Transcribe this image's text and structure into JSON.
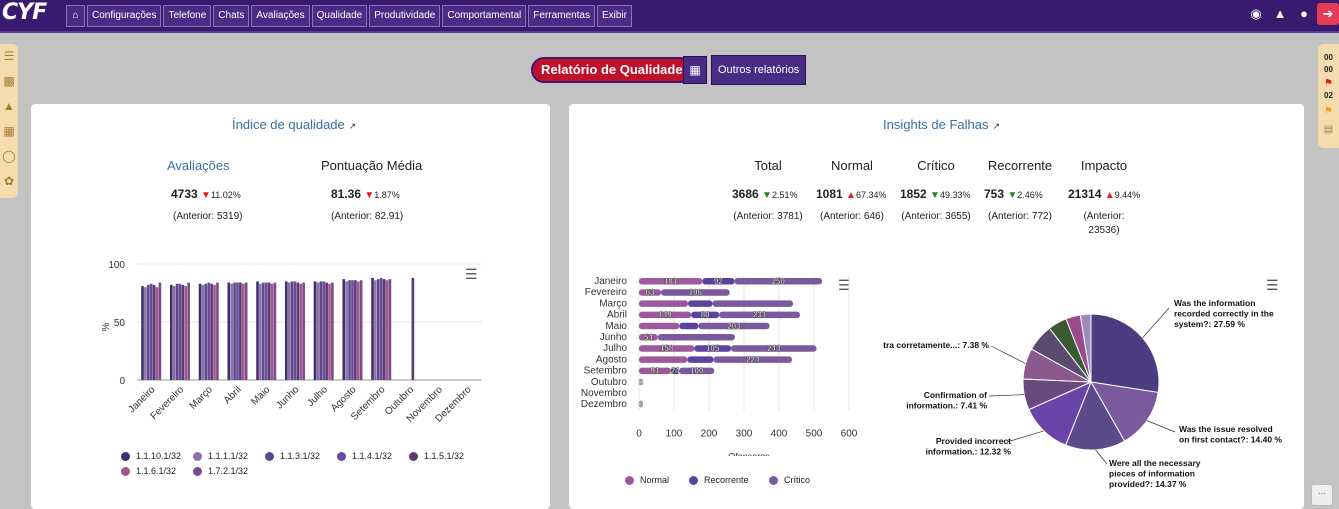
{
  "app": {
    "logo": "CYF"
  },
  "nav": [
    "Configurações",
    "Telefone",
    "Chats",
    "Avaliações",
    "Qualidade",
    "Produtividade",
    "Comportamental",
    "Ferramentas",
    "Exibir"
  ],
  "buttons": {
    "report": "Relatório de Qualidade",
    "other": "Outros relatórios"
  },
  "sidebar_right": {
    "top": "00",
    "mid": "00",
    "count": "02"
  },
  "left_card": {
    "title": "Índice de qualidade",
    "metric1": {
      "label": "Avaliações",
      "value": "4733",
      "pct": "11.02%",
      "prev": "(Anterior: 5319)"
    },
    "metric2": {
      "label": "Pontuação Média",
      "value": "81.36",
      "pct": "1.87%",
      "prev": "(Anterior: 82.91)"
    }
  },
  "right_card": {
    "title": "Insights de Falhas",
    "metrics": [
      {
        "label": "Total",
        "value": "3686",
        "pct": "2.51%",
        "dir": "down-green",
        "prev": "(Anterior: 3781)"
      },
      {
        "label": "Normal",
        "value": "1081",
        "pct": "67.34%",
        "dir": "up-red",
        "prev": "(Anterior: 646)"
      },
      {
        "label": "Crítico",
        "value": "1852",
        "pct": "49.33%",
        "dir": "down-green",
        "prev": "(Anterior: 3655)"
      },
      {
        "label": "Recorrente",
        "value": "753",
        "pct": "2.46%",
        "dir": "down-green",
        "prev": "(Anterior: 772)"
      },
      {
        "label": "Impacto",
        "value": "21314",
        "pct": "9.44%",
        "dir": "up-red",
        "prev": "(Anterior:",
        "prev2": "23536)"
      }
    ]
  },
  "chart_data": [
    {
      "type": "bar",
      "categories": [
        "Janeiro",
        "Fevereiro",
        "Março",
        "Abril",
        "Maio",
        "Junho",
        "Julho",
        "Agosto",
        "Setembro",
        "Outubro",
        "Novembro",
        "Dezembro"
      ],
      "ylabel": "%",
      "yticks": [
        0,
        50,
        100
      ],
      "ylim": [
        0,
        100
      ],
      "series": [
        {
          "name": "1.1.10.1/32",
          "color": "#3f2e6e",
          "values": [
            81,
            82,
            83,
            84,
            85,
            85,
            85,
            87,
            88,
            null,
            null,
            null
          ]
        },
        {
          "name": "1.1.1.1/32",
          "color": "#8e6ea8",
          "values": [
            80,
            81,
            82,
            83,
            83,
            84,
            84,
            85,
            86,
            null,
            null,
            null
          ]
        },
        {
          "name": "1.1.3.1/32",
          "color": "#5a4a88",
          "values": [
            82,
            83,
            83,
            84,
            84,
            85,
            85,
            86,
            87,
            null,
            null,
            null
          ]
        },
        {
          "name": "1.1.4.1/32",
          "color": "#6a4a9e",
          "values": [
            83,
            83,
            84,
            84,
            84,
            85,
            85,
            86,
            88,
            null,
            null,
            null
          ]
        },
        {
          "name": "1.1.5.1/32",
          "color": "#5b3a6e",
          "values": [
            82,
            82,
            83,
            84,
            84,
            84,
            84,
            86,
            87,
            88,
            null,
            null
          ]
        },
        {
          "name": "1.1.6.1/32",
          "color": "#9e5a8e",
          "values": [
            80,
            81,
            82,
            83,
            83,
            83,
            83,
            85,
            86,
            null,
            null,
            null
          ]
        },
        {
          "name": "1.7.2.1/32",
          "color": "#7a4a8e",
          "values": [
            84,
            84,
            84,
            84,
            84,
            84,
            84,
            86,
            87,
            null,
            null,
            null
          ]
        }
      ]
    },
    {
      "type": "bar",
      "orientation": "horizontal",
      "stacked": true,
      "categories": [
        "Janeiro",
        "Fevereiro",
        "Março",
        "Abril",
        "Maio",
        "Junho",
        "Julho",
        "Agosto",
        "Setembro",
        "Outubro",
        "Novembro",
        "Dezembro"
      ],
      "xlabel": "Ofensores",
      "xticks": [
        0,
        100,
        200,
        300,
        400,
        500,
        600
      ],
      "xlim": [
        0,
        600
      ],
      "series": [
        {
          "name": "Normal",
          "color": "#9c5a9c",
          "values": [
            181,
            63,
            140,
            149,
            115,
            54,
            158,
            138,
            91,
            0,
            0,
            0
          ],
          "labels": [
            "181",
            "63",
            "",
            "149",
            "",
            "54",
            "158",
            "",
            "91",
            "0",
            "",
            "0"
          ]
        },
        {
          "name": "Recorrente",
          "color": "#5b44a0",
          "values": [
            92,
            0,
            70,
            80,
            55,
            0,
            105,
            75,
            24,
            0,
            0,
            0
          ],
          "labels": [
            "92",
            "",
            "",
            "80",
            "",
            "",
            "105",
            "",
            "24",
            "",
            "",
            ""
          ]
        },
        {
          "name": "Crítico",
          "color": "#7a5a9c",
          "values": [
            250,
            196,
            230,
            231,
            203,
            220,
            244,
            224,
            100,
            0,
            0,
            0
          ],
          "labels": [
            "250",
            "196",
            "",
            "231",
            "203",
            "",
            "244",
            "224",
            "100",
            "",
            "",
            ""
          ]
        }
      ]
    },
    {
      "type": "pie",
      "slices": [
        {
          "label": "Was the information recorded correctly in the system?: 27.59 %",
          "value": 27.59,
          "color": "#4b3d80"
        },
        {
          "label": "Was the issue resolved on first contact?: 14.40 %",
          "value": 14.4,
          "color": "#7a5a9c"
        },
        {
          "label": "Were all the necessary pieces of information provided?: 14.37 %",
          "value": 14.37,
          "color": "#5b4b8a"
        },
        {
          "label": "Provided incorrect information.: 12.32 %",
          "value": 12.32,
          "color": "#6a44a8"
        },
        {
          "label": "Confirmation of information.: 7.41 %",
          "value": 7.41,
          "color": "#6a4a7e"
        },
        {
          "label": "tra corretamente...: 7.38 %",
          "value": 7.38,
          "color": "#8a5a8e"
        },
        {
          "label": "",
          "value": 6.5,
          "color": "#5a4a6e"
        },
        {
          "label": "",
          "value": 4.5,
          "color": "#3b5a32"
        },
        {
          "label": "",
          "value": 3.5,
          "color": "#9c4a8e"
        },
        {
          "label": "",
          "value": 2.53,
          "color": "#9e8ab8"
        }
      ]
    }
  ]
}
